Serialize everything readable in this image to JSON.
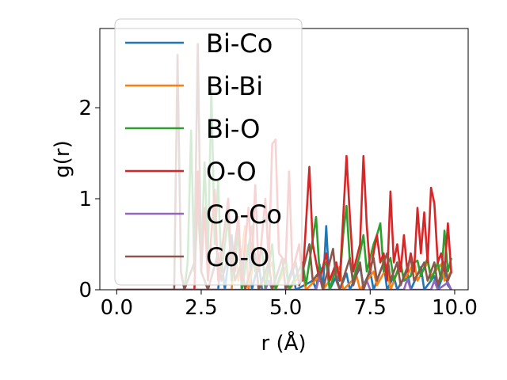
{
  "chart_data": {
    "type": "line",
    "title": "",
    "xlabel": "r (Å)",
    "ylabel": "g(r)",
    "xlim": [
      -0.5,
      10.4
    ],
    "ylim": [
      0,
      2.87
    ],
    "xticks": [
      0.0,
      2.5,
      5.0,
      7.5,
      10.0
    ],
    "xtick_labels": [
      "0.0",
      "2.5",
      "5.0",
      "7.5",
      "10.0"
    ],
    "yticks": [
      0,
      1,
      2
    ],
    "ytick_labels": [
      "0",
      "1",
      "2"
    ],
    "grid": false,
    "legend_position": "top-left",
    "series": [
      {
        "name": "Bi-Co",
        "color": "#1f77b4",
        "points": [
          [
            0,
            0
          ],
          [
            3.0,
            0
          ],
          [
            3.1,
            0.35
          ],
          [
            3.2,
            0
          ],
          [
            3.4,
            0.6
          ],
          [
            3.5,
            0.2
          ],
          [
            3.6,
            0.8
          ],
          [
            3.7,
            0
          ],
          [
            3.9,
            0.5
          ],
          [
            4.0,
            0
          ],
          [
            4.2,
            0.3
          ],
          [
            4.3,
            0
          ],
          [
            5.0,
            0
          ],
          [
            5.2,
            0.25
          ],
          [
            5.3,
            0
          ],
          [
            5.8,
            0.1
          ],
          [
            5.9,
            0
          ],
          [
            6.0,
            0.28
          ],
          [
            6.1,
            0
          ],
          [
            6.2,
            0.7
          ],
          [
            6.3,
            0
          ],
          [
            6.5,
            0.15
          ],
          [
            6.6,
            0
          ],
          [
            6.8,
            0.18
          ],
          [
            6.9,
            0
          ],
          [
            7.2,
            0.25
          ],
          [
            7.3,
            0.05
          ],
          [
            7.5,
            0.2
          ],
          [
            7.6,
            0
          ],
          [
            7.9,
            0.3
          ],
          [
            8.0,
            0
          ],
          [
            8.2,
            0.15
          ],
          [
            8.3,
            0
          ],
          [
            8.6,
            0.2
          ],
          [
            8.7,
            0
          ],
          [
            9.0,
            0.25
          ],
          [
            9.1,
            0
          ],
          [
            9.4,
            0.15
          ],
          [
            9.5,
            0
          ],
          [
            9.7,
            0.2
          ],
          [
            9.8,
            0.05
          ],
          [
            9.9,
            0
          ]
        ]
      },
      {
        "name": "Bi-Bi",
        "color": "#ff7f0e",
        "points": [
          [
            0,
            0
          ],
          [
            3.4,
            0
          ],
          [
            3.5,
            0.5
          ],
          [
            3.6,
            0.1
          ],
          [
            3.8,
            0.7
          ],
          [
            3.9,
            0
          ],
          [
            4.1,
            0.4
          ],
          [
            4.2,
            0
          ],
          [
            4.6,
            0.3
          ],
          [
            4.7,
            0
          ],
          [
            5.0,
            0.25
          ],
          [
            5.1,
            0
          ],
          [
            5.5,
            0.2
          ],
          [
            5.6,
            0
          ],
          [
            6.0,
            0.15
          ],
          [
            6.1,
            0
          ],
          [
            6.6,
            0.25
          ],
          [
            6.7,
            0
          ],
          [
            7.1,
            0.15
          ],
          [
            7.2,
            0
          ],
          [
            7.6,
            0.2
          ],
          [
            7.7,
            0.05
          ],
          [
            8.0,
            0.25
          ],
          [
            8.1,
            0
          ],
          [
            8.4,
            0.28
          ],
          [
            8.5,
            0.1
          ],
          [
            8.8,
            0.3
          ],
          [
            8.9,
            0.1
          ],
          [
            9.2,
            0.3
          ],
          [
            9.3,
            0.15
          ],
          [
            9.6,
            0.28
          ],
          [
            9.7,
            0.1
          ],
          [
            9.9,
            0.2
          ]
        ]
      },
      {
        "name": "Bi-O",
        "color": "#2ca02c",
        "points": [
          [
            0,
            0
          ],
          [
            2.0,
            0
          ],
          [
            2.1,
            0.3
          ],
          [
            2.2,
            1.75
          ],
          [
            2.3,
            0.2
          ],
          [
            2.4,
            0.9
          ],
          [
            2.5,
            0.3
          ],
          [
            2.6,
            1.4
          ],
          [
            2.7,
            0.4
          ],
          [
            2.8,
            2.2
          ],
          [
            2.9,
            0.5
          ],
          [
            3.0,
            1.2
          ],
          [
            3.1,
            0.2
          ],
          [
            3.3,
            0.8
          ],
          [
            3.4,
            0.1
          ],
          [
            3.6,
            0.6
          ],
          [
            3.7,
            0
          ],
          [
            4.0,
            0.7
          ],
          [
            4.1,
            0.2
          ],
          [
            4.3,
            0.45
          ],
          [
            4.4,
            0
          ],
          [
            4.6,
            0.5
          ],
          [
            4.7,
            0
          ],
          [
            5.0,
            0.35
          ],
          [
            5.1,
            0
          ],
          [
            5.5,
            0.3
          ],
          [
            5.6,
            0.05
          ],
          [
            5.9,
            0.8
          ],
          [
            6.0,
            0.2
          ],
          [
            6.2,
            0.3
          ],
          [
            6.3,
            0
          ],
          [
            6.5,
            0.25
          ],
          [
            6.6,
            0.1
          ],
          [
            6.7,
            0.6
          ],
          [
            6.8,
            0.92
          ],
          [
            6.9,
            0.3
          ],
          [
            7.0,
            0.1
          ],
          [
            7.2,
            0.4
          ],
          [
            7.3,
            0.6
          ],
          [
            7.4,
            0.2
          ],
          [
            7.6,
            0.5
          ],
          [
            7.7,
            0.6
          ],
          [
            7.8,
            0.73
          ],
          [
            7.9,
            0.2
          ],
          [
            8.1,
            0.35
          ],
          [
            8.2,
            0.1
          ],
          [
            8.4,
            0.3
          ],
          [
            8.5,
            0.1
          ],
          [
            8.7,
            0.15
          ],
          [
            8.8,
            0.3
          ],
          [
            8.9,
            0.32
          ],
          [
            9.0,
            0.15
          ],
          [
            9.2,
            0.35
          ],
          [
            9.3,
            0.1
          ],
          [
            9.5,
            0.3
          ],
          [
            9.6,
            0.1
          ],
          [
            9.7,
            0.65
          ],
          [
            9.8,
            0.2
          ],
          [
            9.9,
            0.35
          ]
        ]
      },
      {
        "name": "O-O",
        "color": "#d62728",
        "points": [
          [
            0,
            0
          ],
          [
            2.3,
            0
          ],
          [
            2.4,
            1.3
          ],
          [
            2.5,
            0.2
          ],
          [
            2.6,
            0.9
          ],
          [
            2.7,
            0.1
          ],
          [
            2.9,
            1.1
          ],
          [
            3.0,
            0.1
          ],
          [
            3.3,
            1.0
          ],
          [
            3.4,
            0.2
          ],
          [
            3.6,
            0.8
          ],
          [
            3.7,
            0.1
          ],
          [
            3.9,
            0.9
          ],
          [
            4.0,
            0.3
          ],
          [
            4.1,
            1.15
          ],
          [
            4.2,
            0.2
          ],
          [
            4.4,
            1.0
          ],
          [
            4.5,
            0.3
          ],
          [
            4.6,
            1.6
          ],
          [
            4.7,
            1.65
          ],
          [
            4.8,
            0.4
          ],
          [
            5.0,
            0.3
          ],
          [
            5.1,
            1.3
          ],
          [
            5.2,
            0.2
          ],
          [
            5.4,
            0.5
          ],
          [
            5.5,
            0.1
          ],
          [
            5.7,
            1.35
          ],
          [
            5.8,
            0.5
          ],
          [
            6.0,
            0.1
          ],
          [
            6.2,
            0.4
          ],
          [
            6.3,
            0.1
          ],
          [
            6.5,
            0.3
          ],
          [
            6.6,
            0.1
          ],
          [
            6.8,
            1.47
          ],
          [
            6.9,
            0.8
          ],
          [
            7.0,
            0.2
          ],
          [
            7.2,
            0.5
          ],
          [
            7.3,
            1.47
          ],
          [
            7.4,
            0.7
          ],
          [
            7.5,
            0.2
          ],
          [
            7.7,
            0.6
          ],
          [
            7.8,
            0.3
          ],
          [
            7.9,
            0.4
          ],
          [
            8.0,
            0.1
          ],
          [
            8.1,
            1.08
          ],
          [
            8.2,
            0.3
          ],
          [
            8.3,
            0.5
          ],
          [
            8.4,
            0.2
          ],
          [
            8.5,
            0.6
          ],
          [
            8.6,
            0.2
          ],
          [
            8.7,
            0.4
          ],
          [
            8.8,
            0.2
          ],
          [
            8.9,
            0.9
          ],
          [
            9.0,
            0.4
          ],
          [
            9.1,
            0.85
          ],
          [
            9.2,
            0.3
          ],
          [
            9.3,
            1.12
          ],
          [
            9.4,
            0.95
          ],
          [
            9.5,
            0.3
          ],
          [
            9.6,
            0.4
          ],
          [
            9.7,
            0.2
          ],
          [
            9.8,
            0.73
          ],
          [
            9.9,
            0.18
          ]
        ]
      },
      {
        "name": "Co-Co",
        "color": "#9467bd",
        "points": [
          [
            0,
            0
          ],
          [
            4.4,
            0
          ],
          [
            4.5,
            0.1
          ],
          [
            4.6,
            0
          ],
          [
            5.9,
            0
          ],
          [
            6.0,
            0.15
          ],
          [
            6.1,
            0
          ],
          [
            7.3,
            0
          ],
          [
            7.4,
            0.1
          ],
          [
            7.5,
            0
          ],
          [
            8.5,
            0
          ],
          [
            8.6,
            0.12
          ],
          [
            8.7,
            0
          ],
          [
            9.3,
            0
          ],
          [
            9.4,
            0.1
          ],
          [
            9.5,
            0
          ],
          [
            9.8,
            0.08
          ],
          [
            9.9,
            0
          ]
        ]
      },
      {
        "name": "Co-O",
        "color": "#8c564b",
        "points": [
          [
            0,
            0
          ],
          [
            1.7,
            0
          ],
          [
            1.8,
            2.58
          ],
          [
            1.9,
            0.2
          ],
          [
            2.0,
            0
          ],
          [
            2.3,
            0.3
          ],
          [
            2.4,
            2.7
          ],
          [
            2.5,
            0.2
          ],
          [
            2.7,
            0
          ],
          [
            3.0,
            0.4
          ],
          [
            3.1,
            0.1
          ],
          [
            3.4,
            0.5
          ],
          [
            3.5,
            0.1
          ],
          [
            3.7,
            0.3
          ],
          [
            3.8,
            0
          ],
          [
            4.1,
            0.4
          ],
          [
            4.2,
            0
          ],
          [
            4.5,
            0.3
          ],
          [
            4.6,
            0
          ],
          [
            4.9,
            0.35
          ],
          [
            5.0,
            0
          ],
          [
            5.3,
            0.3
          ],
          [
            5.4,
            0.05
          ],
          [
            5.7,
            0.5
          ],
          [
            5.8,
            0.1
          ],
          [
            6.0,
            0.2
          ],
          [
            6.1,
            0
          ],
          [
            6.4,
            0.45
          ],
          [
            6.5,
            0.1
          ],
          [
            6.6,
            0
          ],
          [
            6.9,
            0.35
          ],
          [
            7.0,
            0.05
          ],
          [
            7.2,
            0.3
          ],
          [
            7.3,
            0
          ],
          [
            7.6,
            0.35
          ],
          [
            7.7,
            0.1
          ],
          [
            8.0,
            0.4
          ],
          [
            8.1,
            0.1
          ],
          [
            8.3,
            0.3
          ],
          [
            8.4,
            0.05
          ],
          [
            8.7,
            0.35
          ],
          [
            8.8,
            0.1
          ],
          [
            9.1,
            0.3
          ],
          [
            9.2,
            0.1
          ],
          [
            9.4,
            0.3
          ],
          [
            9.5,
            0.05
          ],
          [
            9.7,
            0.3
          ],
          [
            9.8,
            0.1
          ],
          [
            9.9,
            0.2
          ]
        ]
      }
    ]
  }
}
